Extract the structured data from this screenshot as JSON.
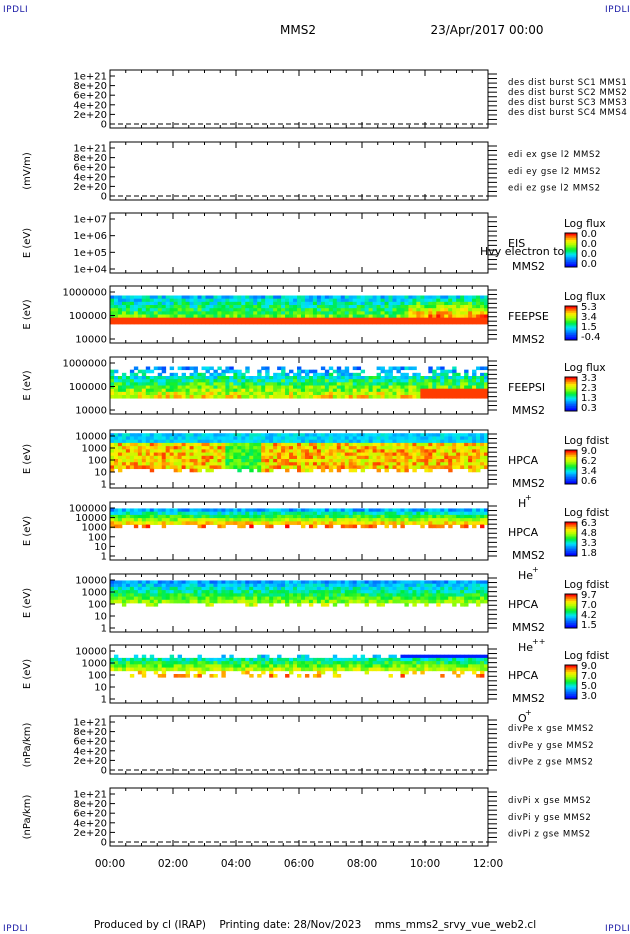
{
  "header": {
    "corner_label": "IPDLI",
    "title": "MMS2",
    "datetime": "23/Apr/2017 00:00"
  },
  "footer": {
    "produced_by": "Produced by cl (IRAP)",
    "printing_date": "Printing date: 28/Nov/2023",
    "script_name": "mms_mms2_srvy_vue_web2.cl"
  },
  "colors": {
    "blue": "#0000cc",
    "magenta": "#dd00dd",
    "red": "#dd0000",
    "green": "#00cc00"
  },
  "chart_data": [
    {
      "type": "line",
      "ylabel": "",
      "yticks": [
        "1e+21",
        "8e+20",
        "6e+20",
        "4e+20",
        "2e+20",
        "0"
      ],
      "legend": [
        {
          "text": "des dist burst SC1 MMS1",
          "color": "#0000cc"
        },
        {
          "text": "des dist burst SC2 MMS2",
          "color": "#dd00dd"
        },
        {
          "text": "des dist burst SC3 MMS3",
          "color": "#dd0000"
        },
        {
          "text": "des dist burst SC4 MMS4",
          "color": "#00cc00"
        }
      ],
      "series": [],
      "xlim": [
        "00:00",
        "12:00"
      ]
    },
    {
      "type": "line",
      "ylabel": "(mV/m)",
      "yticks": [
        "1e+21",
        "8e+20",
        "6e+20",
        "4e+20",
        "2e+20",
        "0"
      ],
      "legend": [
        {
          "text": "edi ex gse l2 MMS2",
          "color": "#dd0000"
        },
        {
          "text": "edi ey gse l2 MMS2",
          "color": "#00cc00"
        },
        {
          "text": "edi ez gse l2 MMS2",
          "color": "#0000cc"
        }
      ],
      "series": [],
      "xlim": [
        "00:00",
        "12:00"
      ]
    },
    {
      "type": "heatmap",
      "ylabel": "E (eV)",
      "yticks": [
        "1e+07",
        "1e+06",
        "1e+05",
        "1e+04"
      ],
      "labels": [
        "EIS",
        "MMS2"
      ],
      "overlay": "Hvy electron to",
      "colorbar": {
        "title": "Log flux",
        "ticks": [
          "0.0",
          "0.0",
          "0.0",
          "0.0"
        ]
      },
      "data": "empty"
    },
    {
      "type": "heatmap",
      "ylabel": "E (eV)",
      "yticks": [
        "1000000",
        "100000",
        "10000"
      ],
      "labels": [
        "FEEPSE",
        "MMS2"
      ],
      "colorbar": {
        "title": "Log flux",
        "ticks": [
          "5.3",
          "3.4",
          "1.5",
          "-0.4"
        ]
      }
    },
    {
      "type": "heatmap",
      "ylabel": "E (eV)",
      "yticks": [
        "1000000",
        "100000",
        "10000"
      ],
      "labels": [
        "FEEPSI",
        "MMS2"
      ],
      "colorbar": {
        "title": "Log flux",
        "ticks": [
          "3.3",
          "2.3",
          "1.3",
          "0.3"
        ]
      }
    },
    {
      "type": "heatmap",
      "ylabel": "E (eV)",
      "yticks": [
        "10000",
        "1000",
        "100",
        "10",
        "1"
      ],
      "labels": [
        "HPCA",
        "MMS2",
        "H",
        "+"
      ],
      "colorbar": {
        "title": "Log fdist",
        "ticks": [
          "9.0",
          "6.2",
          "3.4",
          "0.6"
        ]
      }
    },
    {
      "type": "heatmap",
      "ylabel": "E (eV)",
      "yticks": [
        "100000",
        "10000",
        "1000",
        "100",
        "10",
        "1"
      ],
      "labels": [
        "HPCA",
        "MMS2",
        "He",
        "+"
      ],
      "colorbar": {
        "title": "Log fdist",
        "ticks": [
          "6.3",
          "4.8",
          "3.3",
          "1.8"
        ]
      }
    },
    {
      "type": "heatmap",
      "ylabel": "E (eV)",
      "yticks": [
        "10000",
        "1000",
        "100",
        "10",
        "1"
      ],
      "labels": [
        "HPCA",
        "MMS2",
        "He",
        "++"
      ],
      "colorbar": {
        "title": "Log fdist",
        "ticks": [
          "9.7",
          "7.0",
          "4.2",
          "1.5"
        ]
      }
    },
    {
      "type": "heatmap",
      "ylabel": "E (eV)",
      "yticks": [
        "10000",
        "1000",
        "100",
        "10",
        "1"
      ],
      "labels": [
        "HPCA",
        "MMS2",
        "O",
        "+"
      ],
      "colorbar": {
        "title": "Log fdist",
        "ticks": [
          "9.0",
          "7.0",
          "5.0",
          "3.0"
        ]
      }
    },
    {
      "type": "line",
      "ylabel": "(nPa/km)",
      "yticks": [
        "1e+21",
        "8e+20",
        "6e+20",
        "4e+20",
        "2e+20",
        "0"
      ],
      "legend": [
        {
          "text": "divPe x gse MMS2",
          "color": "#dd0000"
        },
        {
          "text": "divPe y gse MMS2",
          "color": "#00cc00"
        },
        {
          "text": "divPe z gse MMS2",
          "color": "#0000cc"
        }
      ],
      "series": [],
      "xlim": [
        "00:00",
        "12:00"
      ]
    },
    {
      "type": "line",
      "ylabel": "(nPa/km)",
      "yticks": [
        "1e+21",
        "8e+20",
        "6e+20",
        "4e+20",
        "2e+20",
        "0"
      ],
      "legend": [
        {
          "text": "divPi x gse MMS2",
          "color": "#dd0000"
        },
        {
          "text": "divPi y gse MMS2",
          "color": "#00cc00"
        },
        {
          "text": "divPi z gse MMS2",
          "color": "#0000cc"
        }
      ],
      "series": [],
      "xlim": [
        "00:00",
        "12:00"
      ]
    }
  ],
  "xaxis": {
    "ticks": [
      "00:00",
      "02:00",
      "04:00",
      "06:00",
      "08:00",
      "10:00",
      "12:00"
    ]
  }
}
